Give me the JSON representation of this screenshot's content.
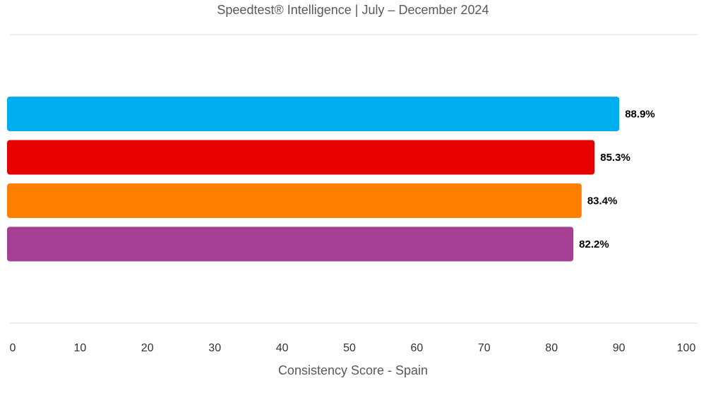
{
  "chart_data": {
    "type": "bar",
    "orientation": "horizontal",
    "title": "Speedtest® Intelligence | July – December 2024",
    "xlabel": "Consistency Score - Spain",
    "ylabel": "",
    "xlim": [
      0,
      100
    ],
    "ticks": [
      0,
      10,
      20,
      30,
      40,
      50,
      60,
      70,
      80,
      90,
      100
    ],
    "bars": [
      {
        "value": 88.9,
        "label": "88.9%",
        "color": "#00AEEF"
      },
      {
        "value": 85.3,
        "label": "85.3%",
        "color": "#E60000"
      },
      {
        "value": 83.4,
        "label": "83.4%",
        "color": "#FF7F00"
      },
      {
        "value": 82.2,
        "label": "82.2%",
        "color": "#A53F93"
      }
    ],
    "grid": false,
    "legend": "none"
  }
}
